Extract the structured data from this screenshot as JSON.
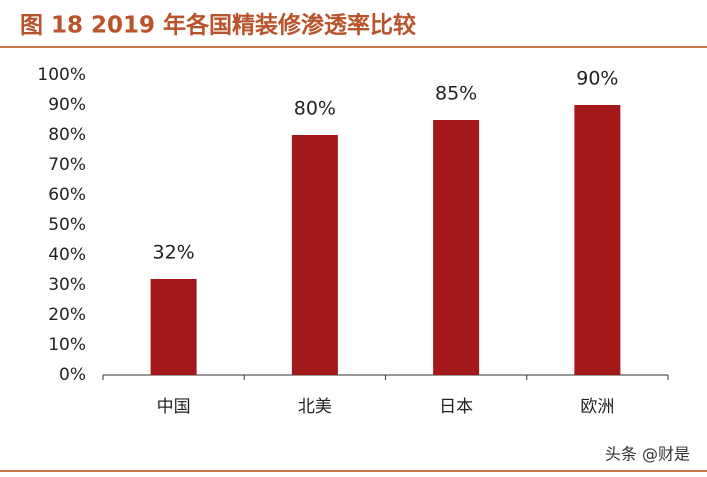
{
  "chart_data": {
    "type": "bar",
    "title": "图 18 2019 年各国精装修渗透率比较",
    "categories": [
      "中国",
      "北美",
      "日本",
      "欧洲"
    ],
    "values": [
      32,
      80,
      85,
      90
    ],
    "value_labels": [
      "32%",
      "80%",
      "85%",
      "90%"
    ],
    "color": "#a3191b",
    "ylim": [
      0,
      100
    ],
    "yticks": [
      {
        "value": 0,
        "label": "0%"
      },
      {
        "value": 10,
        "label": "10%"
      },
      {
        "value": 20,
        "label": "20%"
      },
      {
        "value": 30,
        "label": "30%"
      },
      {
        "value": 40,
        "label": "40%"
      },
      {
        "value": 50,
        "label": "50%"
      },
      {
        "value": 60,
        "label": "60%"
      },
      {
        "value": 70,
        "label": "70%"
      },
      {
        "value": 80,
        "label": "80%"
      },
      {
        "value": 90,
        "label": "90%"
      },
      {
        "value": 100,
        "label": "100%"
      }
    ],
    "grid": false
  },
  "watermark": "头条 @财是"
}
